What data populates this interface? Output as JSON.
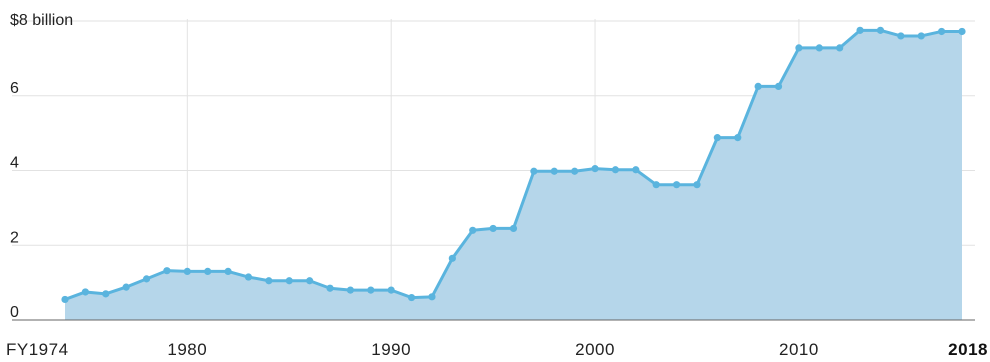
{
  "chart_data": {
    "type": "area",
    "title": "",
    "xlabel": "",
    "ylabel": "",
    "xlim": [
      1974,
      2018
    ],
    "ylim": [
      0,
      8
    ],
    "grid": true,
    "legend": "none",
    "colors": {
      "line": "#5ab4de",
      "fill": "#b5d6ea",
      "marker": "#5ab4de"
    },
    "y_ticks": [
      {
        "value": 0,
        "label": "0"
      },
      {
        "value": 2,
        "label": "2"
      },
      {
        "value": 4,
        "label": "4"
      },
      {
        "value": 6,
        "label": "6"
      },
      {
        "value": 8,
        "label": "$8 billion"
      }
    ],
    "x_ticks": [
      {
        "value": 1974,
        "label": "FY1974",
        "bold": false
      },
      {
        "value": 1980,
        "label": "1980",
        "bold": false
      },
      {
        "value": 1990,
        "label": "1990",
        "bold": false
      },
      {
        "value": 2000,
        "label": "2000",
        "bold": false
      },
      {
        "value": 2010,
        "label": "2010",
        "bold": false
      },
      {
        "value": 2018,
        "label": "2018",
        "bold": true
      }
    ],
    "series": [
      {
        "x": [
          1974,
          1975,
          1976,
          1977,
          1978,
          1979,
          1980,
          1981,
          1982,
          1983,
          1984,
          1985,
          1986,
          1987,
          1988,
          1989,
          1990,
          1991,
          1992,
          1993,
          1994,
          1995,
          1996,
          1997,
          1998,
          1999,
          2000,
          2001,
          2002,
          2003,
          2004,
          2005,
          2006,
          2007,
          2008,
          2009,
          2010,
          2011,
          2012,
          2013,
          2014,
          2015,
          2016,
          2017,
          2018
        ],
        "values": [
          0.55,
          0.75,
          0.7,
          0.88,
          1.1,
          1.32,
          1.3,
          1.3,
          1.3,
          1.15,
          1.05,
          1.05,
          1.05,
          0.85,
          0.8,
          0.8,
          0.8,
          0.6,
          0.62,
          1.65,
          2.4,
          2.45,
          2.45,
          3.98,
          3.98,
          3.98,
          4.05,
          4.02,
          4.02,
          3.62,
          3.62,
          3.62,
          4.88,
          4.88,
          6.25,
          6.25,
          7.28,
          7.28,
          7.28,
          7.75,
          7.75,
          7.6,
          7.6,
          7.72,
          7.72
        ]
      }
    ]
  }
}
